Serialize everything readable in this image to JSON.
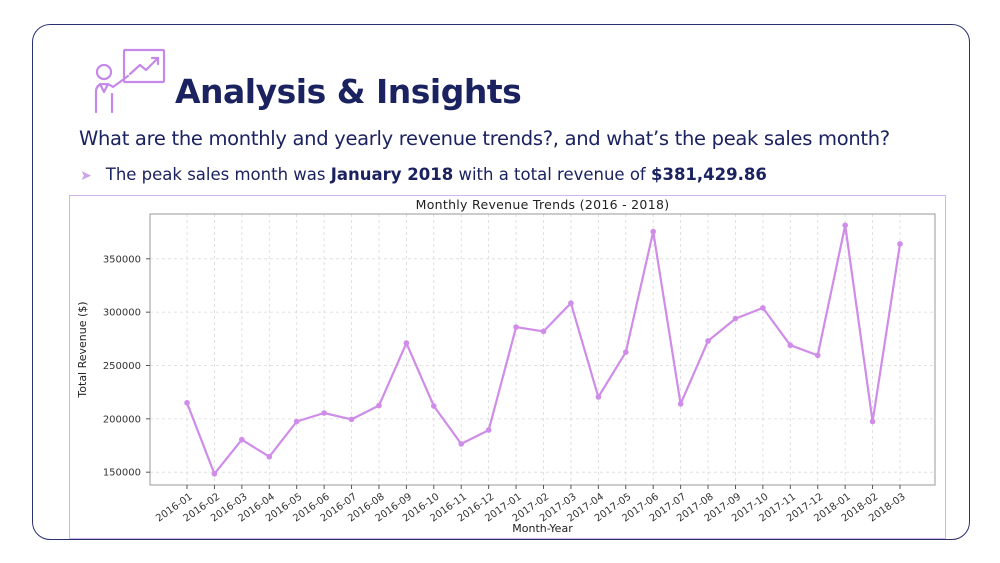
{
  "header": {
    "title": "Analysis & Insights",
    "question": "What are the monthly and yearly revenue trends?, and what’s the peak sales month?",
    "bullet_prefix": "The peak sales month was ",
    "bullet_month": "January 2018",
    "bullet_middle": " with a total revenue of ",
    "bullet_value": "$381,429.86"
  },
  "colors": {
    "accent": "#c689ea",
    "line": "#cf8ce8",
    "title_navy": "#1b2260",
    "border": "#2a3170"
  },
  "icons": {
    "logo": "presenter-with-chart-icon",
    "bullet": "arrow-bullet-icon"
  },
  "chart_data": {
    "type": "line",
    "title": "Monthly Revenue Trends (2016 - 2018)",
    "xlabel": "Month-Year",
    "ylabel": "Total Revenue ($)",
    "categories": [
      "2016-01",
      "2016-02",
      "2016-03",
      "2016-04",
      "2016-05",
      "2016-06",
      "2016-07",
      "2016-08",
      "2016-09",
      "2016-10",
      "2016-11",
      "2016-12",
      "2017-01",
      "2017-02",
      "2017-03",
      "2017-04",
      "2017-05",
      "2017-06",
      "2017-07",
      "2017-08",
      "2017-09",
      "2017-10",
      "2017-11",
      "2017-12",
      "2018-01",
      "2018-02",
      "2018-03"
    ],
    "values": [
      215000,
      148500,
      180500,
      164500,
      197500,
      205500,
      199500,
      212500,
      271000,
      212000,
      176500,
      189500,
      286000,
      282000,
      308500,
      220500,
      262500,
      375500,
      214000,
      273000,
      294000,
      304000,
      269000,
      259500,
      381430,
      197500,
      364000
    ],
    "yticks": [
      150000,
      200000,
      250000,
      300000,
      350000
    ],
    "ylim": [
      138000,
      392000
    ],
    "grid": true,
    "marker": "circle"
  }
}
